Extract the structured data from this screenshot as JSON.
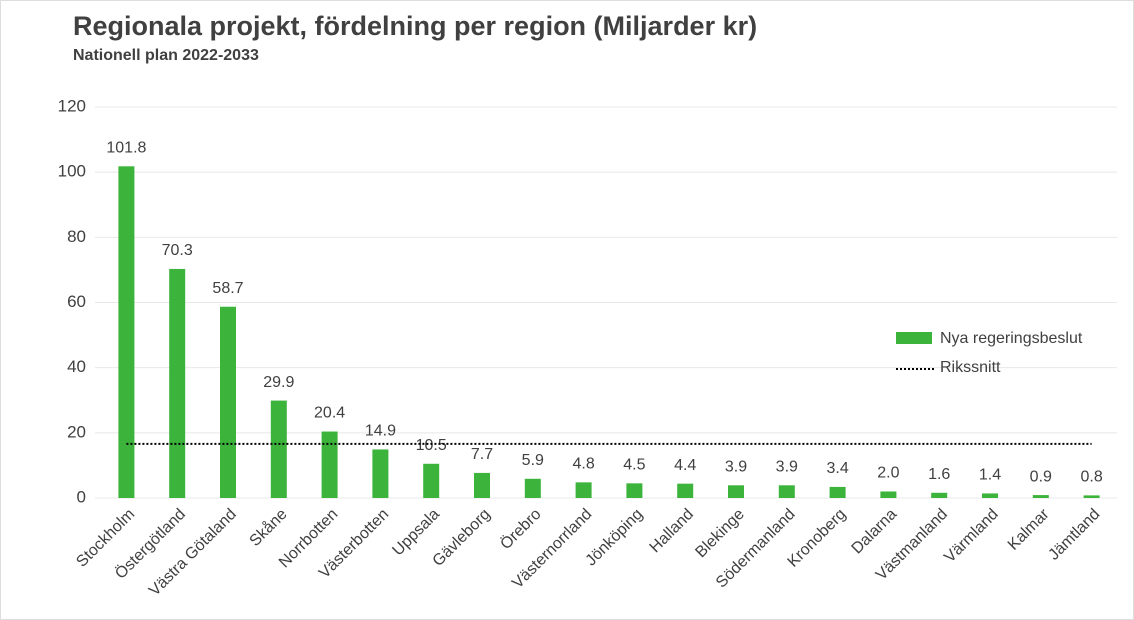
{
  "chart_data": {
    "type": "bar",
    "title": "Regionala projekt, fördelning per region (Miljarder kr)",
    "subtitle": "Nationell plan 2022-2033",
    "categories": [
      "Stockholm",
      "Östergötland",
      "Västra Götaland",
      "Skåne",
      "Norrbotten",
      "Västerbotten",
      "Uppsala",
      "Gävleborg",
      "Örebro",
      "Västernorrland",
      "Jönköping",
      "Halland",
      "Blekinge",
      "Södermanland",
      "Kronoberg",
      "Dalarna",
      "Västmanland",
      "Värmland",
      "Kalmar",
      "Jämtland"
    ],
    "series": [
      {
        "name": "Nya regeringsbeslut",
        "color": "#3cb43c",
        "values": [
          101.8,
          70.3,
          58.7,
          29.9,
          20.4,
          14.9,
          10.5,
          7.7,
          5.9,
          4.8,
          4.5,
          4.4,
          3.9,
          3.9,
          3.4,
          2.0,
          1.6,
          1.4,
          0.9,
          0.8
        ],
        "value_labels": [
          "101.8",
          "70.3",
          "58.7",
          "29.9",
          "20.4",
          "14.9",
          "10.5",
          "7.7",
          "5.9",
          "4.8",
          "4.5",
          "4.4",
          "3.9",
          "3.9",
          "3.4",
          "2.0",
          "1.6",
          "1.4",
          "0.9",
          "0.8"
        ]
      }
    ],
    "reference": {
      "name": "Rikssnitt",
      "value": 16.6,
      "color": "#000000",
      "style": "dotted"
    },
    "ylim": [
      0,
      120
    ],
    "yticks": [
      0,
      20,
      40,
      60,
      80,
      100,
      120
    ],
    "grid": true,
    "legend": "right"
  }
}
